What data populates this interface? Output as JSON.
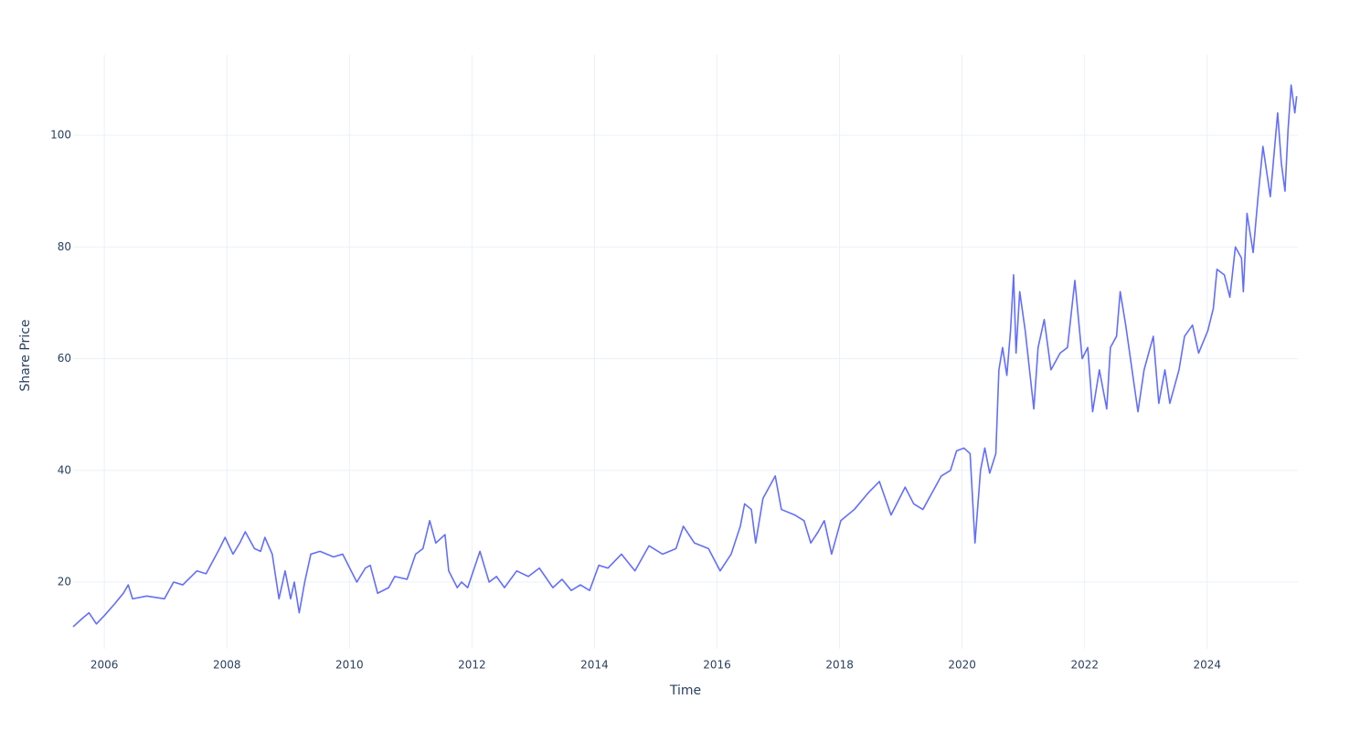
{
  "chart_data": {
    "type": "line",
    "x_label": "Time",
    "y_label": "Share Price",
    "xlim": [
      2005.49,
      2025.48
    ],
    "xticks": [
      2006,
      2008,
      2010,
      2012,
      2014,
      2016,
      2018,
      2020,
      2022,
      2024
    ],
    "ylim": [
      8.06,
      114.4
    ],
    "yticks": [
      20,
      40,
      60,
      80,
      100
    ],
    "grid": true,
    "x": [
      2005.49,
      2005.64,
      2005.75,
      2005.87,
      2006.0,
      2006.16,
      2006.31,
      2006.39,
      2006.46,
      2006.69,
      2006.98,
      2007.13,
      2007.28,
      2007.51,
      2007.66,
      2007.88,
      2007.97,
      2008.1,
      2008.21,
      2008.3,
      2008.45,
      2008.55,
      2008.62,
      2008.74,
      2008.85,
      2008.95,
      2009.04,
      2009.1,
      2009.18,
      2009.27,
      2009.37,
      2009.52,
      2009.74,
      2009.89,
      2010.12,
      2010.26,
      2010.34,
      2010.46,
      2010.64,
      2010.74,
      2010.94,
      2011.08,
      2011.2,
      2011.31,
      2011.41,
      2011.56,
      2011.62,
      2011.76,
      2011.83,
      2011.93,
      2012.13,
      2012.28,
      2012.4,
      2012.53,
      2012.73,
      2012.92,
      2013.1,
      2013.32,
      2013.47,
      2013.62,
      2013.77,
      2013.92,
      2014.07,
      2014.22,
      2014.44,
      2014.66,
      2014.89,
      2015.11,
      2015.33,
      2015.45,
      2015.63,
      2015.86,
      2016.05,
      2016.23,
      2016.38,
      2016.45,
      2016.56,
      2016.63,
      2016.75,
      2016.95,
      2017.05,
      2017.27,
      2017.42,
      2017.53,
      2017.65,
      2017.75,
      2017.87,
      2018.02,
      2018.24,
      2018.47,
      2018.65,
      2018.84,
      2019.07,
      2019.21,
      2019.36,
      2019.51,
      2019.66,
      2019.81,
      2019.91,
      2020.03,
      2020.13,
      2020.21,
      2020.3,
      2020.37,
      2020.45,
      2020.55,
      2020.6,
      2020.66,
      2020.73,
      2020.79,
      2020.84,
      2020.88,
      2020.94,
      2021.03,
      2021.17,
      2021.24,
      2021.34,
      2021.45,
      2021.6,
      2021.72,
      2021.84,
      2021.96,
      2022.05,
      2022.13,
      2022.24,
      2022.36,
      2022.42,
      2022.52,
      2022.58,
      2022.67,
      2022.76,
      2022.87,
      2022.97,
      2023.12,
      2023.21,
      2023.31,
      2023.39,
      2023.54,
      2023.63,
      2023.76,
      2023.86,
      2024.01,
      2024.1,
      2024.16,
      2024.28,
      2024.37,
      2024.46,
      2024.56,
      2024.59,
      2024.65,
      2024.75,
      2024.83,
      2024.91,
      2025.03,
      2025.15,
      2025.21,
      2025.27,
      2025.32,
      2025.37,
      2025.43,
      2025.46
    ],
    "series": [
      {
        "color": "#636efa",
        "values": [
          12,
          13.5,
          14.5,
          12.5,
          14,
          16,
          18,
          19.5,
          17,
          17.5,
          17,
          20,
          19.5,
          22,
          21.5,
          26,
          28,
          25,
          27,
          29,
          26,
          25.5,
          28,
          25,
          17,
          22,
          17,
          20,
          14.5,
          20,
          25,
          25.5,
          24.5,
          25,
          20,
          22.5,
          23,
          18,
          19,
          21,
          20.5,
          25,
          26,
          31,
          27,
          28.5,
          22,
          19,
          20,
          19,
          25.5,
          20,
          21,
          19,
          22,
          21,
          22.5,
          19,
          20.5,
          18.5,
          19.5,
          18.5,
          23,
          22.5,
          25,
          22,
          26.5,
          25,
          26,
          30,
          27,
          26,
          22,
          25,
          30,
          34,
          33,
          27,
          35,
          39,
          33,
          32,
          31,
          27,
          29,
          31,
          25,
          31,
          33,
          36,
          38,
          32,
          37,
          34,
          33,
          36,
          39,
          40,
          43.5,
          44,
          43,
          27,
          40,
          44,
          39.5,
          43,
          58,
          62,
          57,
          65,
          75,
          61,
          72,
          65,
          51,
          62,
          67,
          58,
          61,
          62,
          74,
          60,
          62,
          50.5,
          58,
          51,
          62,
          64,
          72,
          66,
          59,
          50.5,
          58,
          64,
          52,
          58,
          52,
          58,
          64,
          66,
          61,
          65,
          69,
          76,
          75,
          71,
          80,
          78,
          72,
          86,
          79,
          89,
          98,
          89,
          104,
          95,
          90,
          101,
          109,
          104,
          107
        ]
      }
    ]
  }
}
